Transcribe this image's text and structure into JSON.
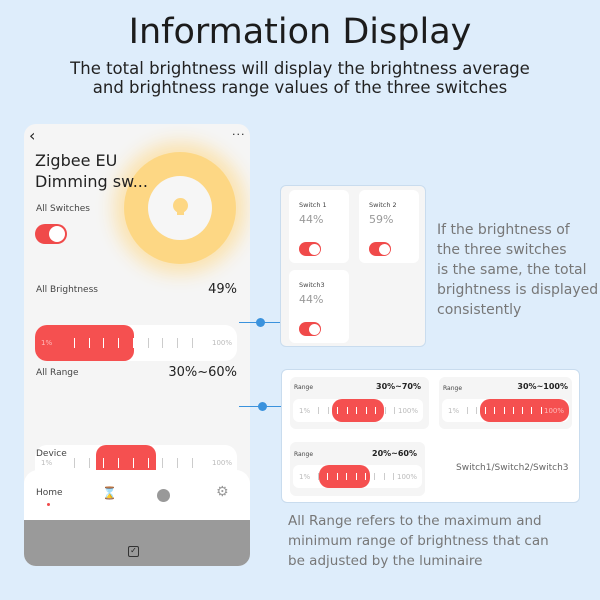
{
  "title": "Information Display",
  "subtitle": [
    "The total brightness will display the brightness average",
    "and brightness range values of the three switches"
  ],
  "phone": {
    "device_name": [
      "Zigbee EU",
      "Dimming sw..."
    ],
    "all_switches_label": "All Switches",
    "all_switches_on": true,
    "brightness_label": "All Brightness",
    "brightness_value": "49%",
    "brightness": {
      "from": 0,
      "to": 49,
      "min_label": "1%",
      "max_label": "100%"
    },
    "range_label": "All Range",
    "range_value": "30%~60%",
    "range": {
      "from": 30,
      "to": 60,
      "min_label": "1%",
      "max_label": "100%"
    },
    "device_label": "Device",
    "nav": [
      {
        "label": "Home",
        "icon": "home"
      },
      {
        "icon": "hourglass-icon"
      },
      {
        "icon": "clock-icon"
      },
      {
        "icon": "gear-icon"
      }
    ]
  },
  "switches": [
    {
      "name": "Switch 1",
      "value": "44%",
      "on": true
    },
    {
      "name": "Switch 2",
      "value": "59%",
      "on": true
    },
    {
      "name": "Switch3",
      "value": "44%",
      "on": true
    }
  ],
  "switches_note": [
    "If the brightness of",
    "the three switches",
    "is the same, the total",
    "brightness is displayed",
    "consistently"
  ],
  "ranges": [
    {
      "label": "Range",
      "value": "30%~70%",
      "from": 30,
      "to": 70,
      "min_label": "1%",
      "max_label": "100%"
    },
    {
      "label": "Range",
      "value": "30%~100%",
      "from": 30,
      "to": 100,
      "min_label": "1%",
      "max_label": "100%"
    },
    {
      "label": "Range",
      "value": "20%~60%",
      "from": 20,
      "to": 60,
      "min_label": "1%",
      "max_label": "100%"
    }
  ],
  "ranges_caption": "Switch1/Switch2/Switch3",
  "range_note": [
    "All Range refers to the maximum and",
    "minimum range of brightness that can",
    "be adjusted by the luminaire"
  ],
  "colors": {
    "accent": "#f55050",
    "connector": "#3a92dd",
    "background": "#deedfb"
  }
}
